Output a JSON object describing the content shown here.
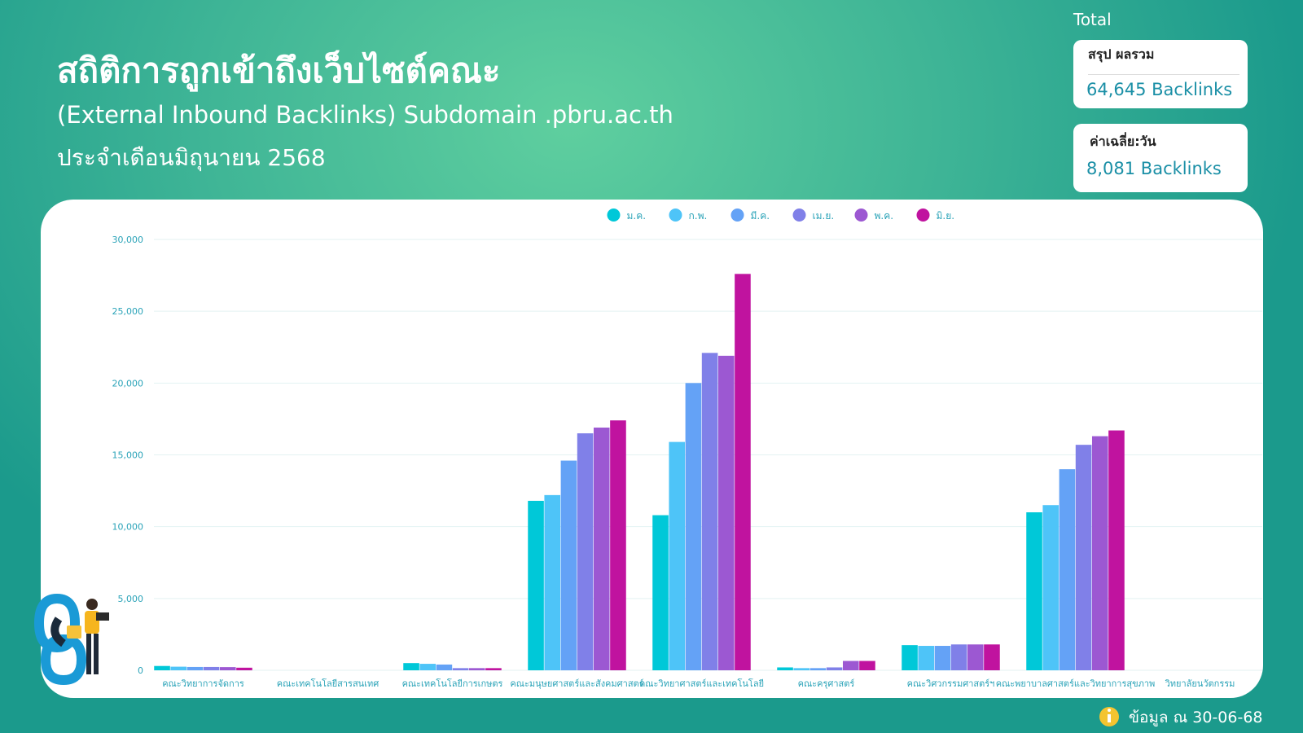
{
  "header": {
    "title": "สถิติการถูกเข้าถึงเว็บไซต์คณะ",
    "subtitle": "(External Inbound Backlinks) Subdomain .pbru.ac.th",
    "period": "ประจำเดือนมิถุนายน 2568"
  },
  "summary": {
    "heading": "Total",
    "total_label": "สรุป ผลรวม",
    "total_value": "64,645 Backlinks",
    "avg_label": "ค่าเฉลี่ย:วัน",
    "avg_value": "8,081 Backlinks"
  },
  "footer": "ข้อมูล ณ 30-06-68",
  "chart_data": {
    "type": "bar",
    "categories": [
      "คณะวิทยาการจัดการ",
      "คณะเทคโนโลยีสารสนเทศ",
      "คณะเทคโนโลยีการเกษตร",
      "คณะมนุษยศาสตร์และสังคมศาสตร์",
      "คณะวิทยาศาสตร์และเทคโนโลยี",
      "คณะครุศาสตร์",
      "คณะวิศวกรรมศาสตร์ฯ",
      "คณะพยาบาลศาสตร์และวิทยาการสุขภาพ",
      "วิทยาลัยนวัตกรรม"
    ],
    "series": [
      {
        "name": "ม.ค.",
        "color": "#00c8d8",
        "values": [
          300,
          0,
          500,
          11800,
          10800,
          200,
          1750,
          11000,
          0
        ]
      },
      {
        "name": "ก.พ.",
        "color": "#4ec4f8",
        "values": [
          250,
          0,
          450,
          12200,
          15900,
          150,
          1700,
          11500,
          0
        ]
      },
      {
        "name": "มี.ค.",
        "color": "#64a2f6",
        "values": [
          230,
          0,
          400,
          14600,
          20000,
          150,
          1700,
          14000,
          0
        ]
      },
      {
        "name": "เม.ย.",
        "color": "#8080e8",
        "values": [
          230,
          0,
          150,
          16500,
          22100,
          200,
          1800,
          15700,
          0
        ]
      },
      {
        "name": "พ.ค.",
        "color": "#9c58d2",
        "values": [
          220,
          0,
          150,
          16900,
          21900,
          650,
          1800,
          16300,
          0
        ]
      },
      {
        "name": "มิ.ย.",
        "color": "#c0139f",
        "values": [
          180,
          0,
          150,
          17400,
          27600,
          650,
          1800,
          16700,
          0
        ]
      }
    ],
    "ylim": [
      0,
      30000
    ],
    "yticks": [
      0,
      {
        "value": 5000,
        "label": "5,000"
      },
      {
        "value": 10000,
        "label": "10,000"
      },
      {
        "value": 15000,
        "label": "15,000"
      },
      {
        "value": 20000,
        "label": "20,000"
      },
      {
        "value": 25000,
        "label": "25,000"
      },
      {
        "value": 30000,
        "label": "30,000"
      }
    ],
    "grid": true,
    "legend": "top"
  }
}
